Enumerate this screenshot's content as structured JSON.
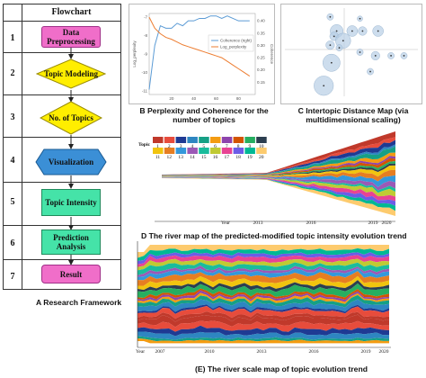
{
  "flowchart": {
    "title": "Flowchart",
    "steps": [
      {
        "num": "1",
        "label": "Data Preprocessing"
      },
      {
        "num": "2",
        "label": "Topic Modeling"
      },
      {
        "num": "3",
        "label": "No. of Topics"
      },
      {
        "num": "4",
        "label": "Visualization"
      },
      {
        "num": "5",
        "label": "Topic Intensity"
      },
      {
        "num": "6",
        "label": "Prediction Analysis"
      },
      {
        "num": "7",
        "label": "Result"
      }
    ],
    "caption": "A  Research Framework"
  },
  "captions": {
    "b": "B  Perplexity and Coherence for the number of topics",
    "c": "C  Intertopic Distance Map (via multidimensional scaling)",
    "d": "D  The river map of the predicted-modified topic intensity evolution trend",
    "e": "(E) The river scale map of topic evolution trend"
  },
  "chart_data": [
    {
      "type": "line",
      "panel": "B",
      "legend": [
        "Coherence (right)",
        "Log_perplexity"
      ],
      "x": [
        0,
        5,
        10,
        15,
        20,
        25,
        30,
        35,
        40,
        45,
        50,
        55,
        60,
        65,
        70,
        75,
        80,
        85,
        90
      ],
      "series": [
        {
          "name": "Coherence (right)",
          "color": "#5b9bd5",
          "values": [
            0.12,
            0.3,
            0.38,
            0.37,
            0.37,
            0.39,
            0.38,
            0.4,
            0.4,
            0.41,
            0.41,
            0.42,
            0.42,
            0.41,
            0.42,
            0.41,
            0.4,
            0.4,
            0.4
          ]
        },
        {
          "name": "Log_perplexity",
          "color": "#ed7d31",
          "values": [
            -7.0,
            -7.6,
            -7.9,
            -8.1,
            -8.2,
            -8.35,
            -8.5,
            -8.6,
            -8.7,
            -8.8,
            -8.9,
            -9.0,
            -9.1,
            -9.2,
            -9.4,
            -9.6,
            -9.8,
            -10.0,
            -10.2
          ]
        }
      ],
      "yleft_ticks": [
        "-7",
        "-8",
        "-9",
        "-10",
        "-11"
      ],
      "yright_ticks": [
        "0.40",
        "0.35",
        "0.30",
        "0.25",
        "0.20",
        "0.15"
      ],
      "xticks": [
        "20",
        "40",
        "60",
        "80"
      ],
      "ylabel_left": "Log_perplexity",
      "ylabel_right": "Coherence"
    },
    {
      "type": "scatter",
      "panel": "C",
      "points": [
        {
          "x": 0.35,
          "y": 0.9,
          "r": 3
        },
        {
          "x": 0.58,
          "y": 0.88,
          "r": 2.5
        },
        {
          "x": 0.4,
          "y": 0.74,
          "r": 6
        },
        {
          "x": 0.52,
          "y": 0.74,
          "r": 5
        },
        {
          "x": 0.6,
          "y": 0.74,
          "r": 4
        },
        {
          "x": 0.72,
          "y": 0.74,
          "r": 5
        },
        {
          "x": 0.38,
          "y": 0.68,
          "r": 4
        },
        {
          "x": 0.45,
          "y": 0.63,
          "r": 7
        },
        {
          "x": 0.35,
          "y": 0.58,
          "r": 4
        },
        {
          "x": 0.42,
          "y": 0.55,
          "r": 3
        },
        {
          "x": 0.58,
          "y": 0.5,
          "r": 3
        },
        {
          "x": 0.7,
          "y": 0.46,
          "r": 4
        },
        {
          "x": 0.82,
          "y": 0.46,
          "r": 3
        },
        {
          "x": 0.92,
          "y": 0.46,
          "r": 3
        },
        {
          "x": 0.36,
          "y": 0.38,
          "r": 8
        },
        {
          "x": 0.66,
          "y": 0.28,
          "r": 3
        },
        {
          "x": 0.3,
          "y": 0.12,
          "r": 9
        }
      ]
    },
    {
      "type": "area",
      "panel": "D",
      "legend_label": "Topic",
      "topics": [
        "1",
        "2",
        "3",
        "4",
        "5",
        "6",
        "7",
        "8",
        "9",
        "10",
        "11",
        "12",
        "13",
        "14",
        "15",
        "16",
        "17",
        "18",
        "19",
        "20"
      ],
      "x": [
        "2013",
        "2016",
        "2019",
        "2020"
      ],
      "axis_label": "Year"
    },
    {
      "type": "area",
      "panel": "E",
      "x": [
        "2007",
        "2010",
        "2013",
        "2016",
        "2019",
        "2020"
      ],
      "axis_label": "Year"
    }
  ],
  "colors": {
    "pink": "#f06ec9",
    "yellow": "#ffee00",
    "blue": "#3b8fd6",
    "green": "#45e3a8",
    "topics": [
      "#c0392b",
      "#e74c3c",
      "#1f3a93",
      "#2e86c1",
      "#16a085",
      "#f39c12",
      "#8e44ad",
      "#d35400",
      "#27ae60",
      "#2c3e50",
      "#f1c40f",
      "#e67e22",
      "#3498db",
      "#9b59b6",
      "#1abc9c",
      "#c0ca33",
      "#e84393",
      "#6c5ce7",
      "#00b894",
      "#fdcb6e"
    ]
  }
}
